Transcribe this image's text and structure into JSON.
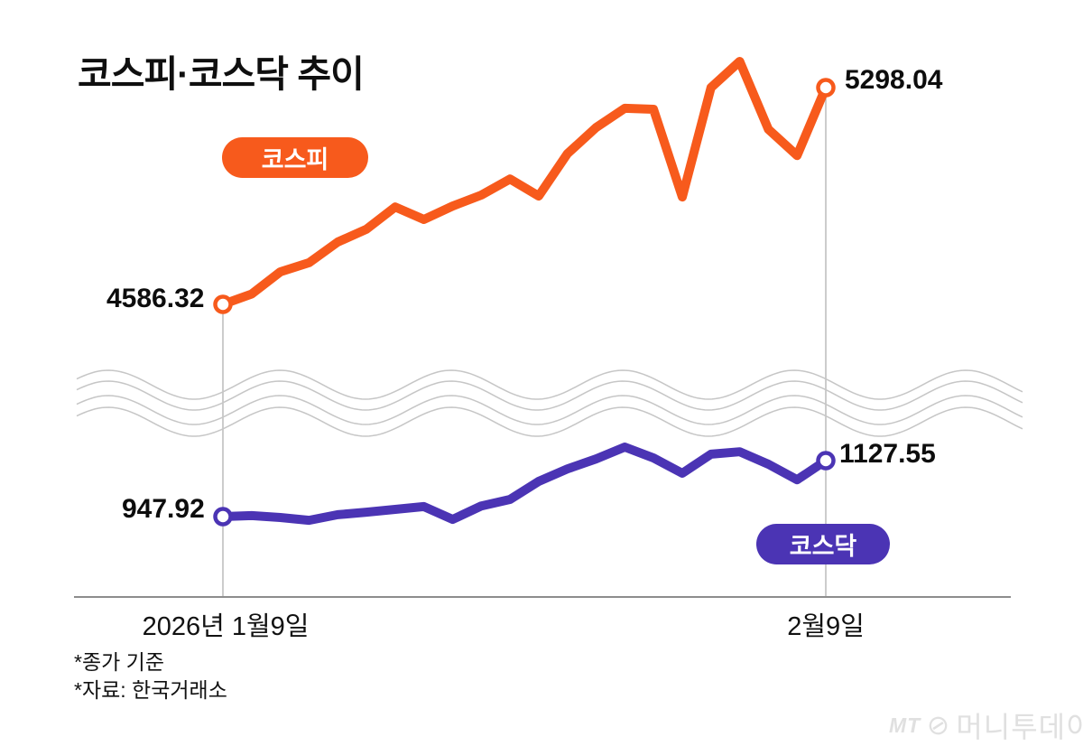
{
  "title": "코스피·코스닥 추이",
  "series_labels": {
    "kospi": "코스피",
    "kosdaq": "코스닥"
  },
  "value_labels": {
    "kospi_start": "4586.32",
    "kospi_end": "5298.04",
    "kosdaq_start": "947.92",
    "kosdaq_end": "1127.55"
  },
  "x_axis": {
    "start_label": "2026년 1월9일",
    "end_label": "2월9일"
  },
  "footnotes": {
    "line1": "*종가 기준",
    "line2": "*자료: 한국거래소"
  },
  "watermark": {
    "mt": "MT",
    "logo_glyph": "⊘",
    "name": "머니투데이"
  },
  "colors": {
    "kospi": "#f75a1c",
    "kosdaq": "#4b34b4",
    "axis": "#8d8d8d",
    "dropline": "#bbbbbb",
    "wave_break": "#c6c6c6",
    "marker_fill": "#ffffff",
    "text": "#111111",
    "watermark": "#e0e0e0"
  },
  "chart_data": [
    {
      "type": "line",
      "name": "코스피",
      "x_start_label": "2026년 1월9일",
      "x_end_label": "2월9일",
      "start_value": 4586.32,
      "end_value": 5298.04,
      "values": [
        4586.32,
        4620,
        4693,
        4723,
        4791,
        4833,
        4906,
        4865,
        4909,
        4945,
        4998,
        4942,
        5081,
        5167,
        5230,
        5227,
        4939,
        5298,
        5384,
        5161,
        5075,
        5298.04
      ],
      "color": "#f75a1c",
      "marker": "open-circle-endpoints",
      "note": "values between labeled endpoints estimated from pixel positions; daily closes Jan 9 – Feb 9 2026"
    },
    {
      "type": "line",
      "name": "코스닥",
      "x_start_label": "2026년 1월9일",
      "x_end_label": "2월9일",
      "start_value": 947.92,
      "end_value": 1127.55,
      "values": [
        947.92,
        951,
        945,
        936,
        954,
        962,
        971,
        980,
        939,
        982,
        1003,
        1061,
        1101,
        1133,
        1171,
        1136,
        1087,
        1148,
        1156,
        1116,
        1066,
        1127.55
      ],
      "color": "#4b34b4",
      "marker": "open-circle-endpoints",
      "note": "values between labeled endpoints estimated from pixel positions"
    },
    {
      "type": "layout-note",
      "name": "axis-break",
      "description": "wavy 4-line axis break separating the two series panels; legend pills inline; grid off"
    }
  ]
}
